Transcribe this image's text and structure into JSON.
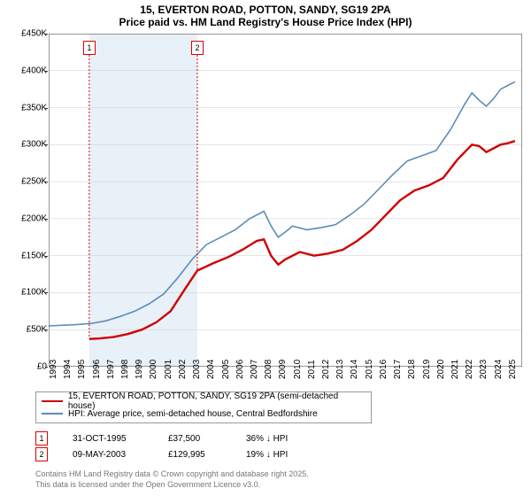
{
  "title_line1": "15, EVERTON ROAD, POTTON, SANDY, SG19 2PA",
  "title_line2": "Price paid vs. HM Land Registry's House Price Index (HPI)",
  "chart": {
    "type": "line",
    "background_color": "#ffffff",
    "band_color": "#e8f0f8",
    "grid_color": "#cccccc",
    "xlim": [
      1993,
      2026
    ],
    "ylim": [
      0,
      450000
    ],
    "ytick_step": 50000,
    "yticks": [
      "£0",
      "£50K",
      "£100K",
      "£150K",
      "£200K",
      "£250K",
      "£300K",
      "£350K",
      "£400K",
      "£450K"
    ],
    "xticks": [
      "1993",
      "1994",
      "1995",
      "1996",
      "1997",
      "1998",
      "1999",
      "2000",
      "2001",
      "2002",
      "2003",
      "2004",
      "2005",
      "2006",
      "2007",
      "2008",
      "2009",
      "2010",
      "2011",
      "2012",
      "2013",
      "2014",
      "2015",
      "2016",
      "2017",
      "2018",
      "2019",
      "2020",
      "2021",
      "2022",
      "2023",
      "2024",
      "2025"
    ],
    "bands": [
      {
        "start": 1995.83,
        "end": 2003.36
      }
    ],
    "markers": [
      {
        "id": "1",
        "year": 1995.83,
        "y": 37500
      },
      {
        "id": "2",
        "year": 2003.36,
        "y": 129995
      }
    ],
    "series": [
      {
        "name": "price_paid",
        "color": "#d00000",
        "width": 2.4,
        "points": [
          [
            1995.83,
            37500
          ],
          [
            1996.5,
            38000
          ],
          [
            1997.5,
            40000
          ],
          [
            1998.5,
            44000
          ],
          [
            1999.5,
            50000
          ],
          [
            2000.5,
            60000
          ],
          [
            2001.5,
            75000
          ],
          [
            2002.5,
            105000
          ],
          [
            2003.36,
            129995
          ],
          [
            2003.5,
            131000
          ],
          [
            2004.5,
            140000
          ],
          [
            2005.5,
            148000
          ],
          [
            2006.5,
            158000
          ],
          [
            2007.5,
            170000
          ],
          [
            2008.0,
            172000
          ],
          [
            2008.5,
            150000
          ],
          [
            2009.0,
            138000
          ],
          [
            2009.5,
            145000
          ],
          [
            2010.5,
            155000
          ],
          [
            2011.5,
            150000
          ],
          [
            2012.5,
            153000
          ],
          [
            2013.5,
            158000
          ],
          [
            2014.5,
            170000
          ],
          [
            2015.5,
            185000
          ],
          [
            2016.5,
            205000
          ],
          [
            2017.5,
            225000
          ],
          [
            2018.5,
            238000
          ],
          [
            2019.5,
            245000
          ],
          [
            2020.5,
            255000
          ],
          [
            2021.5,
            280000
          ],
          [
            2022.5,
            300000
          ],
          [
            2023.0,
            298000
          ],
          [
            2023.5,
            290000
          ],
          [
            2024.0,
            295000
          ],
          [
            2024.5,
            300000
          ],
          [
            2025.0,
            302000
          ],
          [
            2025.5,
            305000
          ]
        ]
      },
      {
        "name": "hpi",
        "color": "#5b8db8",
        "width": 1.6,
        "points": [
          [
            1993.0,
            55000
          ],
          [
            1994.0,
            56000
          ],
          [
            1995.0,
            57000
          ],
          [
            1996.0,
            58500
          ],
          [
            1997.0,
            62000
          ],
          [
            1998.0,
            68000
          ],
          [
            1999.0,
            75000
          ],
          [
            2000.0,
            85000
          ],
          [
            2001.0,
            98000
          ],
          [
            2002.0,
            120000
          ],
          [
            2003.0,
            145000
          ],
          [
            2004.0,
            165000
          ],
          [
            2005.0,
            175000
          ],
          [
            2006.0,
            185000
          ],
          [
            2007.0,
            200000
          ],
          [
            2008.0,
            210000
          ],
          [
            2008.5,
            190000
          ],
          [
            2009.0,
            175000
          ],
          [
            2009.5,
            182000
          ],
          [
            2010.0,
            190000
          ],
          [
            2011.0,
            185000
          ],
          [
            2012.0,
            188000
          ],
          [
            2013.0,
            192000
          ],
          [
            2014.0,
            205000
          ],
          [
            2015.0,
            220000
          ],
          [
            2016.0,
            240000
          ],
          [
            2017.0,
            260000
          ],
          [
            2018.0,
            278000
          ],
          [
            2019.0,
            285000
          ],
          [
            2020.0,
            292000
          ],
          [
            2021.0,
            320000
          ],
          [
            2022.0,
            355000
          ],
          [
            2022.5,
            370000
          ],
          [
            2023.0,
            360000
          ],
          [
            2023.5,
            352000
          ],
          [
            2024.0,
            362000
          ],
          [
            2024.5,
            375000
          ],
          [
            2025.0,
            380000
          ],
          [
            2025.5,
            385000
          ]
        ]
      }
    ]
  },
  "legend": {
    "items": [
      {
        "color": "#d00000",
        "label": "15, EVERTON ROAD, POTTON, SANDY, SG19 2PA (semi-detached house)",
        "width": 2.4
      },
      {
        "color": "#5b8db8",
        "label": "HPI: Average price, semi-detached house, Central Bedfordshire",
        "width": 1.6
      }
    ]
  },
  "datapoints": [
    {
      "id": "1",
      "date": "31-OCT-1995",
      "price": "£37,500",
      "pct": "36% ↓ HPI"
    },
    {
      "id": "2",
      "date": "09-MAY-2003",
      "price": "£129,995",
      "pct": "19% ↓ HPI"
    }
  ],
  "footer_line1": "Contains HM Land Registry data © Crown copyright and database right 2025.",
  "footer_line2": "This data is licensed under the Open Government Licence v3.0."
}
